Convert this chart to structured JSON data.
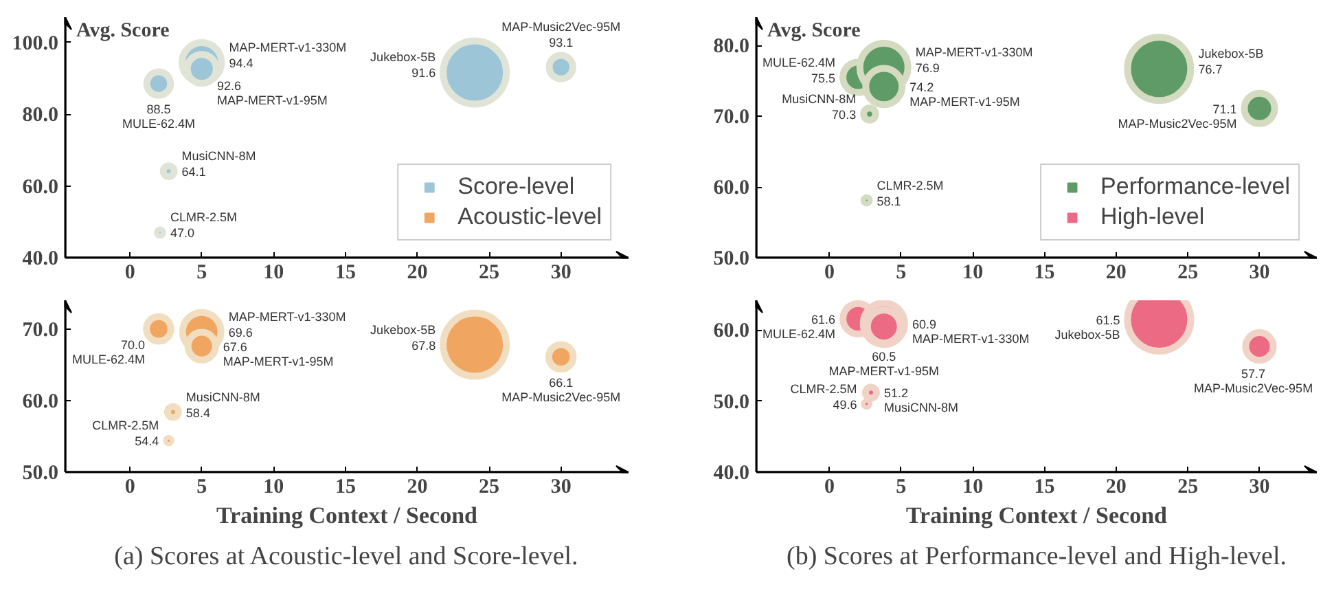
{
  "chart_data": [
    {
      "type": "bubble",
      "ylabel": "Avg. Score",
      "xlim": [
        -4.5,
        34.7
      ],
      "xticks": [
        0,
        5,
        10,
        15,
        20,
        25,
        30
      ],
      "ylim": [
        40,
        107
      ],
      "yticks": [
        {
          "value": 40,
          "label": "40.0"
        },
        {
          "value": 60,
          "label": "60.0"
        },
        {
          "value": 80,
          "label": "80.0"
        },
        {
          "value": 100,
          "label": "100.0"
        }
      ],
      "grid": false,
      "legend": "bottom right",
      "series": [
        {
          "name": "Score-level",
          "color": "#9cc6d7",
          "x": [
            2,
            5,
            5,
            2.7,
            2.1,
            24,
            30
          ],
          "values": [
            88.5,
            94.4,
            92.6,
            64.1,
            47.0,
            91.6,
            93.1
          ],
          "value_labels": [
            "88.5",
            "94.4",
            "92.6",
            "64.1",
            "47.0",
            "91.6",
            "93.1"
          ],
          "sizes": [
            0.14,
            0.39,
            0.21,
            0.03,
            0.007,
            1,
            0.14
          ]
        }
      ],
      "annotations": [
        "MULE-62.4M",
        "MAP-MERT-v1-330M",
        "MAP-MERT-v1-95M",
        "MusiCNN-8M",
        "CLMR-2.5M",
        "Jukebox-5B",
        "MAP-Music2Vec-95M"
      ]
    },
    {
      "type": "bubble",
      "ylabel": "Avg. Score",
      "xlim": [
        -5.1,
        34
      ],
      "xticks": [
        0,
        5,
        10,
        15,
        20,
        25,
        30
      ],
      "ylim": [
        50,
        84
      ],
      "yticks": [
        {
          "value": 50,
          "label": "50.0"
        },
        {
          "value": 60,
          "label": "60.0"
        },
        {
          "value": 70,
          "label": "70.0"
        },
        {
          "value": 80,
          "label": "80.0"
        }
      ],
      "grid": false,
      "legend": "bottom right",
      "series": [
        {
          "name": "Performance-level",
          "color": "#5f9b66",
          "x": [
            2,
            3.8,
            3.8,
            2.8,
            2.6,
            23,
            30
          ],
          "values": [
            75.5,
            76.9,
            74.2,
            70.3,
            58.1,
            76.7,
            71.1
          ],
          "value_labels": [
            "75.5",
            "76.9",
            "74.2",
            "70.3",
            "58.1",
            "76.7",
            "71.1"
          ],
          "sizes": [
            0.23,
            0.58,
            0.33,
            0.036,
            0.007,
            1,
            0.23
          ]
        }
      ],
      "annotations": [
        "MULE-62.4M",
        "MAP-MERT-v1-330M",
        "MAP-MERT-v1-95M",
        "MusiCNN-8M",
        "CLMR-2.5M",
        "Jukebox-5B",
        "MAP-Music2Vec-95M"
      ]
    },
    {
      "type": "bubble",
      "xlabel": "Training Context / Second",
      "xlim": [
        -4.5,
        34.7
      ],
      "xticks": [
        0,
        5,
        10,
        15,
        20,
        25,
        30
      ],
      "ylim": [
        50,
        74
      ],
      "yticks": [
        {
          "value": 50,
          "label": "50.0"
        },
        {
          "value": 60,
          "label": "60.0"
        },
        {
          "value": 70,
          "label": "70.0"
        }
      ],
      "grid": false,
      "series": [
        {
          "name": "Acoustic-level",
          "color": "#f0a661",
          "x": [
            2,
            5,
            5,
            3,
            2.7,
            24,
            30
          ],
          "values": [
            70.0,
            69.6,
            67.6,
            58.4,
            54.4,
            67.8,
            66.1
          ],
          "value_labels": [
            "70.0",
            "69.6",
            "67.6",
            "58.4",
            "54.4",
            "67.8",
            "66.1"
          ],
          "sizes": [
            0.15,
            0.37,
            0.19,
            0.03,
            0.005,
            1,
            0.15
          ]
        }
      ],
      "annotations": [
        "MULE-62.4M",
        "MAP-MERT-v1-330M",
        "MAP-MERT-v1-95M",
        "MusiCNN-8M",
        "CLMR-2.5M",
        "Jukebox-5B",
        "MAP-Music2Vec-95M",
        "(a) Scores at Acoustic-level and Score-level."
      ]
    },
    {
      "type": "bubble",
      "xlabel": "Training Context / Second",
      "xlim": [
        -5.1,
        34
      ],
      "xticks": [
        0,
        5,
        10,
        15,
        20,
        25,
        30
      ],
      "ylim": [
        40,
        64.2
      ],
      "yticks": [
        {
          "value": 40,
          "label": "40.0"
        },
        {
          "value": 50,
          "label": "50.0"
        },
        {
          "value": 60,
          "label": "60.0"
        }
      ],
      "grid": false,
      "series": [
        {
          "name": "High-level",
          "color": "#ec6a84",
          "x": [
            2,
            3.8,
            3.8,
            2.9,
            2.6,
            23,
            30
          ],
          "values": [
            61.6,
            60.9,
            60.5,
            51.2,
            49.6,
            61.5,
            57.7
          ],
          "value_labels": [
            "61.6",
            "60.9",
            "60.5",
            "51.2",
            "49.6",
            "61.5",
            "57.7"
          ],
          "sizes": [
            0.23,
            0.43,
            0.27,
            0.03,
            0.005,
            1,
            0.19
          ]
        }
      ],
      "annotations": [
        "MULE-62.4M",
        "MAP-MERT-v1-330M",
        "MAP-MERT-v1-95M",
        "MusiCNN-8M",
        "CLMR-2.5M",
        "Jukebox-5B",
        "MAP-Music2Vec-95M",
        "(b) Scores at Performance-level and High-level."
      ]
    }
  ]
}
